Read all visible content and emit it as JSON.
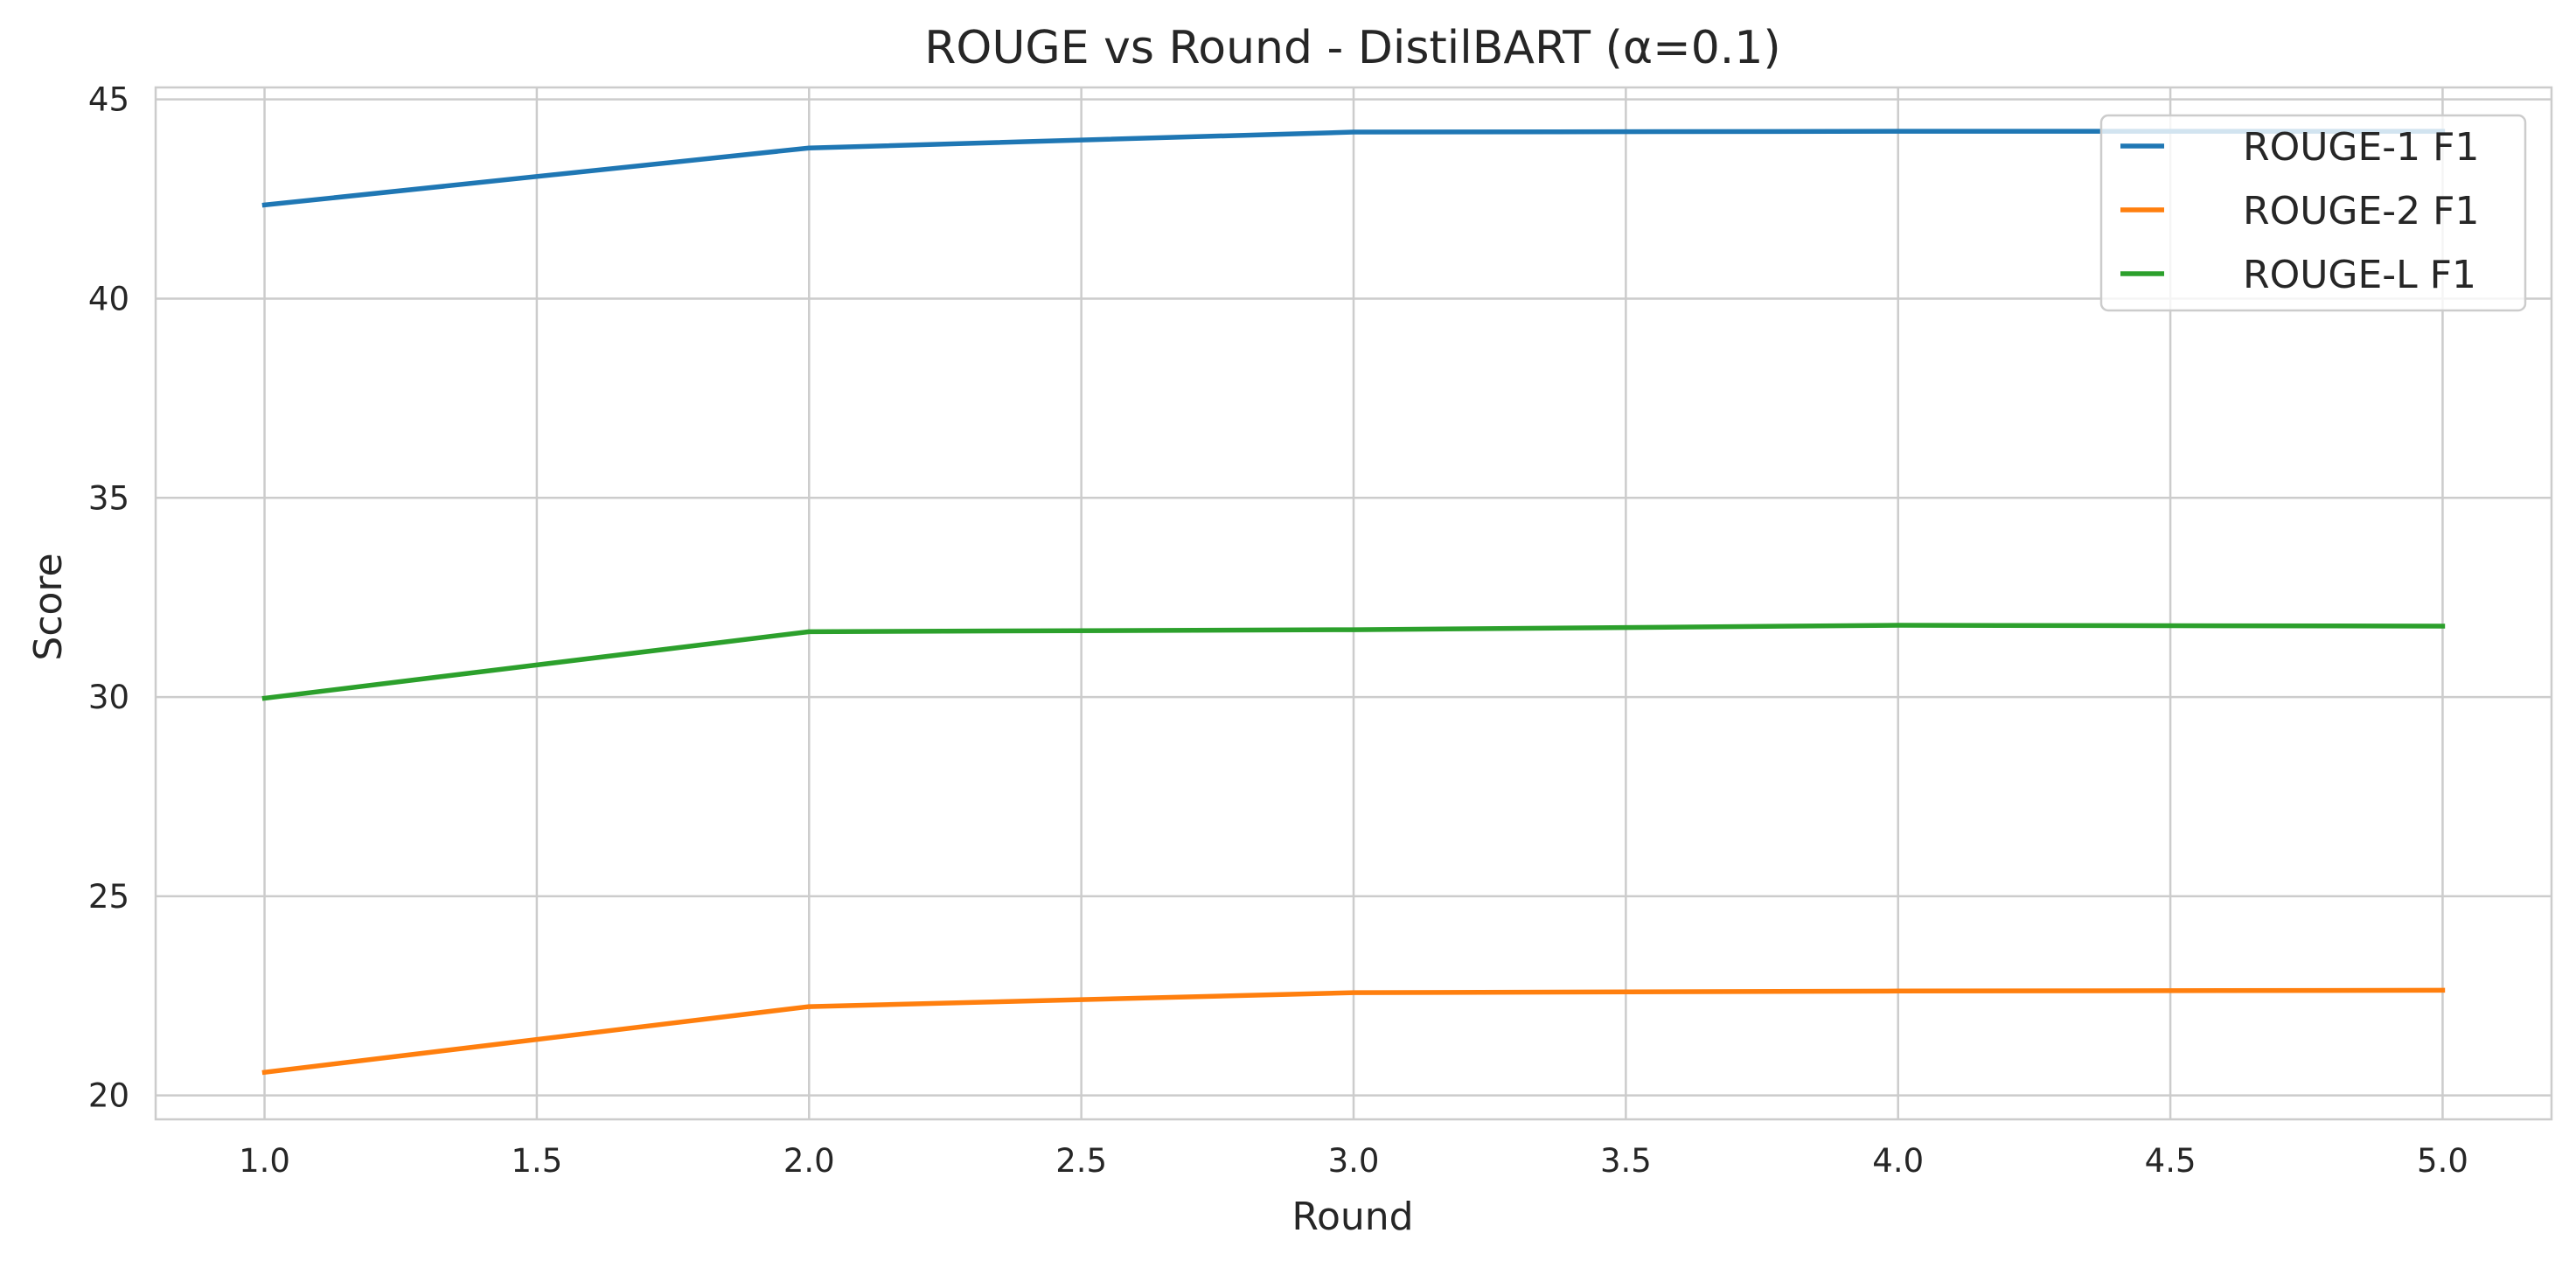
{
  "chart_data": {
    "type": "line",
    "title": "ROUGE vs Round - DistilBART (α=0.1)",
    "xlabel": "Round",
    "ylabel": "Score",
    "x": [
      1,
      2,
      3,
      4,
      5
    ],
    "xlim": [
      0.8,
      5.2
    ],
    "ylim": [
      19.4,
      45.3
    ],
    "xticks": [
      1.0,
      1.5,
      2.0,
      2.5,
      3.0,
      3.5,
      4.0,
      4.5,
      5.0
    ],
    "xtick_labels": [
      "1.0",
      "1.5",
      "2.0",
      "2.5",
      "3.0",
      "3.5",
      "4.0",
      "4.5",
      "5.0"
    ],
    "yticks": [
      20,
      25,
      30,
      35,
      40,
      45
    ],
    "ytick_labels": [
      "20",
      "25",
      "30",
      "35",
      "40",
      "45"
    ],
    "grid": true,
    "legend_position": "top-right",
    "series": [
      {
        "name": "ROUGE-1 F1",
        "color": "#1f77b4",
        "values": [
          42.35,
          43.78,
          44.18,
          44.2,
          44.2
        ]
      },
      {
        "name": "ROUGE-2 F1",
        "color": "#ff7f0e",
        "values": [
          20.58,
          22.23,
          22.58,
          22.62,
          22.64
        ]
      },
      {
        "name": "ROUGE-L F1",
        "color": "#2ca02c",
        "values": [
          29.97,
          31.64,
          31.69,
          31.8,
          31.78
        ]
      }
    ]
  }
}
